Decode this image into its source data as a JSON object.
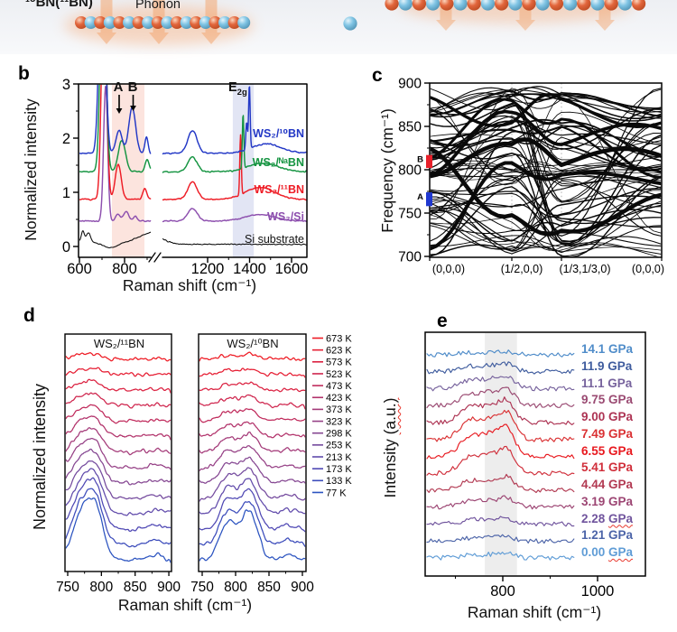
{
  "panel_a": {
    "isotope_label": "¹⁰BN(¹¹BN)",
    "phonon_label": "Phonon",
    "boron_color": "#e2663c",
    "nitrogen_color": "#7fc4e4",
    "arrow_color": "#f2a873"
  },
  "chart_data": [
    {
      "id": "b",
      "type": "line",
      "panel_letter": "b",
      "xlabel": "Raman shift (cm⁻¹)",
      "ylabel": "Normalized intensity",
      "x_ticks_left": [
        600,
        800
      ],
      "x_ticks_right": [
        1200,
        1400,
        1600
      ],
      "x_minor_left": [
        700,
        900
      ],
      "x_minor_right": [
        1300,
        1500
      ],
      "y_ticks": [
        0,
        1,
        2,
        3
      ],
      "x_axis_break": true,
      "xlim_left": [
        600,
        916
      ],
      "xlim_right": [
        989,
        1669
      ],
      "ylim": [
        0,
        3.2
      ],
      "annotations": {
        "peak_a": "A",
        "peak_b": "B",
        "e2g_base": "E",
        "e2g_sub": "2g"
      },
      "bands": [
        {
          "name": "isotope-phonon-band",
          "range_cm": [
            744,
            888
          ],
          "color": "rgba(246,158,138,0.28)",
          "side": "left"
        },
        {
          "name": "e2g-band",
          "range_cm": [
            1320,
            1420
          ],
          "color": "rgba(158,168,218,0.30)",
          "side": "right"
        }
      ],
      "series": [
        {
          "label": "WS₂/¹⁰BN",
          "color": "#2338c6",
          "baseline": 1.72,
          "peaks": [
            [
              701,
              4.2,
              13
            ],
            [
              776,
              0.42,
              14
            ],
            [
              834,
              0.85,
              15
            ],
            [
              897,
              0.3,
              7
            ],
            [
              1128,
              0.42,
              22
            ],
            [
              1386,
              0.5,
              4
            ],
            [
              1399,
              1.18,
              3.5
            ],
            [
              1480,
              0.17,
              70
            ]
          ]
        },
        {
          "label": "WS₂/ᴺᵃBN",
          "color": "#159441",
          "baseline": 1.38,
          "peaks": [
            [
              705,
              4.2,
              12
            ],
            [
              788,
              0.58,
              16
            ],
            [
              900,
              0.22,
              9
            ],
            [
              1128,
              0.27,
              22
            ],
            [
              1369,
              1.0,
              3.5
            ],
            [
              1465,
              0.16,
              70
            ]
          ]
        },
        {
          "label": "WS₂/¹¹BN",
          "color": "#ee1c25",
          "baseline": 0.87,
          "peaks": [
            [
              709,
              4.2,
              11
            ],
            [
              772,
              0.65,
              13
            ],
            [
              890,
              0.2,
              9
            ],
            [
              1128,
              0.32,
              22
            ],
            [
              1357,
              1.1,
              3.5
            ],
            [
              1450,
              0.22,
              70
            ]
          ]
        },
        {
          "label": "WS₂/Si",
          "color": "#8d4fae",
          "baseline": 0.47,
          "peaks": [
            [
              716,
              2.5,
              9
            ],
            [
              770,
              0.13,
              9
            ],
            [
              806,
              0.17,
              12
            ],
            [
              848,
              0.1,
              7
            ],
            [
              1128,
              0.24,
              22
            ],
            [
              1450,
              0.12,
              70
            ]
          ]
        },
        {
          "label": "Si substrate",
          "color": "#111111",
          "baseline": 0.08,
          "baseline_right": 0.04,
          "peaks": [
            [
              615,
              0.2,
              7
            ],
            [
              640,
              0.17,
              10
            ],
            [
              737,
              -0.1,
              35
            ],
            [
              925,
              0.18,
              55
            ]
          ]
        }
      ]
    },
    {
      "id": "c",
      "type": "line",
      "panel_letter": "c",
      "ylabel": "Frequency (cm⁻¹)",
      "y_ticks": [
        700,
        750,
        800,
        850,
        900
      ],
      "y_minor": [
        725,
        775,
        825,
        875
      ],
      "x_tick_labels": [
        "(0,0,0)",
        "(1/2,0,0)",
        "(1/3,1/3,0)",
        "(0,0,0)"
      ],
      "ylim": [
        700,
        900
      ],
      "markers": [
        {
          "label": "B",
          "color": "#e8202a",
          "freq_range": [
            802,
            817
          ]
        },
        {
          "label": "A",
          "color": "#2038d0",
          "freq_range": [
            758,
            774
          ]
        }
      ],
      "band_color": "#0a0a0a"
    },
    {
      "id": "d",
      "type": "line",
      "panel_letter": "d",
      "xlabel": "Raman shift (cm⁻¹)",
      "ylabel": "Normalized intensity",
      "x_ticks": [
        750,
        800,
        850,
        900
      ],
      "x_minor": [
        775,
        825,
        875
      ],
      "xlim": [
        745,
        905
      ],
      "subpanels": [
        {
          "title": "WS₂/¹¹BN",
          "peak_centers": [
            772,
            793
          ]
        },
        {
          "title": "WS₂/¹⁰BN",
          "peak_centers": [
            788,
            820
          ]
        }
      ],
      "temperatures": [
        {
          "label": "673 K",
          "color": "#ee1b24"
        },
        {
          "label": "623 K",
          "color": "#e61e33"
        },
        {
          "label": "573 K",
          "color": "#db2140"
        },
        {
          "label": "523 K",
          "color": "#cf264e"
        },
        {
          "label": "473 K",
          "color": "#c02b5c"
        },
        {
          "label": "423 K",
          "color": "#b2336b"
        },
        {
          "label": "373 K",
          "color": "#a43a79"
        },
        {
          "label": "323 K",
          "color": "#964186"
        },
        {
          "label": "298 K",
          "color": "#854792"
        },
        {
          "label": "253 K",
          "color": "#744a9e"
        },
        {
          "label": "213 K",
          "color": "#614bab"
        },
        {
          "label": "173 K",
          "color": "#4f48b4"
        },
        {
          "label": "133 K",
          "color": "#3c4cbb"
        },
        {
          "label": "77 K",
          "color": "#2b53c0"
        }
      ]
    },
    {
      "id": "e",
      "type": "line",
      "panel_letter": "e",
      "xlabel": "Raman shift (cm⁻¹)",
      "ylabel_prefix": "Intensity ",
      "ylabel_unit": "(a.u.)",
      "x_ticks": [
        800,
        1000
      ],
      "x_minor": [
        700,
        900
      ],
      "xlim": [
        640,
        954
      ],
      "band_range_cm": [
        762,
        830
      ],
      "series": [
        {
          "label": "14.1",
          "unit": "GPa",
          "color": "#4f8cc9",
          "amp": 3.5,
          "wavy_unit": false
        },
        {
          "label": "11.9",
          "unit": "GPa",
          "color": "#3f5c9e",
          "amp": 9,
          "wavy_unit": false
        },
        {
          "label": "11.1",
          "unit": "GPa",
          "color": "#77639d",
          "amp": 14,
          "wavy_unit": false
        },
        {
          "label": "9.75",
          "unit": "GPa",
          "color": "#9a4a72",
          "amp": 19,
          "wavy_unit": false
        },
        {
          "label": "9.00",
          "unit": "GPa",
          "color": "#ad3353",
          "amp": 25,
          "wavy_unit": false
        },
        {
          "label": "7.49",
          "unit": "GPa",
          "color": "#da3133",
          "amp": 31,
          "wavy_unit": false
        },
        {
          "label": "6.55",
          "unit": "GPa",
          "color": "#e8191f",
          "amp": 33,
          "wavy_unit": false
        },
        {
          "label": "5.41",
          "unit": "GPa",
          "color": "#d02e3a",
          "amp": 27,
          "wavy_unit": false
        },
        {
          "label": "4.44",
          "unit": "GPa",
          "color": "#b23a52",
          "amp": 15,
          "wavy_unit": false
        },
        {
          "label": "3.19",
          "unit": "GPa",
          "color": "#9c4573",
          "amp": 10,
          "wavy_unit": false
        },
        {
          "label": "2.28",
          "unit": "GPa",
          "color": "#70549d",
          "amp": 6.5,
          "wavy_unit": true
        },
        {
          "label": "1.21",
          "unit": "GPa",
          "color": "#4c64a8",
          "amp": 5,
          "wavy_unit": false
        },
        {
          "label": "0.00",
          "unit": "GPa",
          "color": "#5f9cd6",
          "amp": 5,
          "wavy_unit": true
        }
      ]
    }
  ]
}
